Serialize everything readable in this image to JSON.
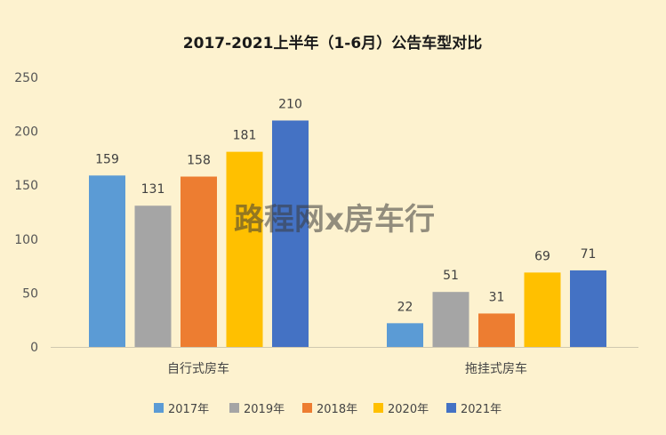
{
  "chart_data": {
    "type": "bar",
    "title": "2017-2021上半年（1-6月）公告车型对比",
    "categories": [
      "自行式房车",
      "拖挂式房车"
    ],
    "series": [
      {
        "name": "2017年",
        "color": "#5b9bd5",
        "values": [
          159,
          22
        ]
      },
      {
        "name": "2019年",
        "color": "#a5a5a5",
        "values": [
          131,
          51
        ]
      },
      {
        "name": "2018年",
        "color": "#ed7d31",
        "values": [
          158,
          31
        ]
      },
      {
        "name": "2020年",
        "color": "#ffc000",
        "values": [
          181,
          69
        ]
      },
      {
        "name": "2021年",
        "color": "#4472c4",
        "values": [
          210,
          71
        ]
      }
    ],
    "ylim": [
      0,
      250
    ],
    "yticks": [
      "0",
      "50",
      "100",
      "150",
      "200",
      "250"
    ],
    "grid": false,
    "legend_position": "bottom"
  },
  "watermark": "路程网x房车行"
}
